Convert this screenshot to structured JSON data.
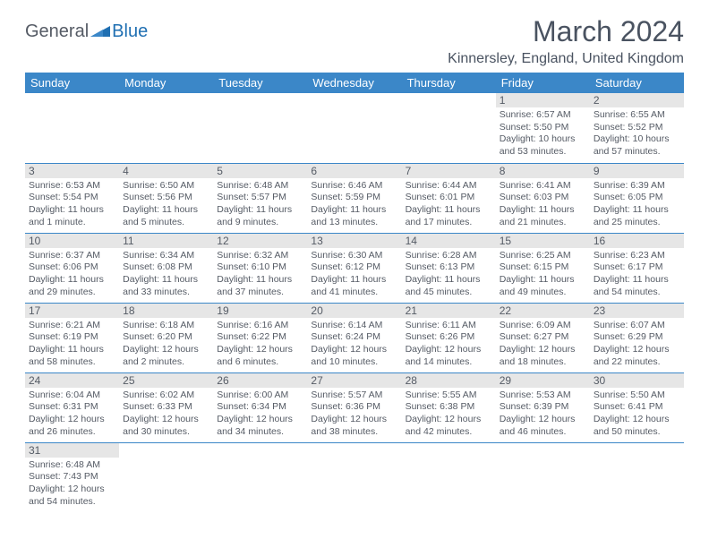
{
  "logo": {
    "part1": "General",
    "part2": "Blue"
  },
  "title": "March 2024",
  "subtitle": "Kinnersley, England, United Kingdom",
  "colors": {
    "header_bg": "#3b87c8",
    "daynum_bg": "#e6e6e6",
    "text": "#555b65",
    "logo_accent": "#1f6fb2"
  },
  "weekdays": [
    "Sunday",
    "Monday",
    "Tuesday",
    "Wednesday",
    "Thursday",
    "Friday",
    "Saturday"
  ],
  "weeks": [
    [
      null,
      null,
      null,
      null,
      null,
      {
        "n": "1",
        "sr": "6:57 AM",
        "ss": "5:50 PM",
        "dl": "10 hours and 53 minutes."
      },
      {
        "n": "2",
        "sr": "6:55 AM",
        "ss": "5:52 PM",
        "dl": "10 hours and 57 minutes."
      }
    ],
    [
      {
        "n": "3",
        "sr": "6:53 AM",
        "ss": "5:54 PM",
        "dl": "11 hours and 1 minute."
      },
      {
        "n": "4",
        "sr": "6:50 AM",
        "ss": "5:56 PM",
        "dl": "11 hours and 5 minutes."
      },
      {
        "n": "5",
        "sr": "6:48 AM",
        "ss": "5:57 PM",
        "dl": "11 hours and 9 minutes."
      },
      {
        "n": "6",
        "sr": "6:46 AM",
        "ss": "5:59 PM",
        "dl": "11 hours and 13 minutes."
      },
      {
        "n": "7",
        "sr": "6:44 AM",
        "ss": "6:01 PM",
        "dl": "11 hours and 17 minutes."
      },
      {
        "n": "8",
        "sr": "6:41 AM",
        "ss": "6:03 PM",
        "dl": "11 hours and 21 minutes."
      },
      {
        "n": "9",
        "sr": "6:39 AM",
        "ss": "6:05 PM",
        "dl": "11 hours and 25 minutes."
      }
    ],
    [
      {
        "n": "10",
        "sr": "6:37 AM",
        "ss": "6:06 PM",
        "dl": "11 hours and 29 minutes."
      },
      {
        "n": "11",
        "sr": "6:34 AM",
        "ss": "6:08 PM",
        "dl": "11 hours and 33 minutes."
      },
      {
        "n": "12",
        "sr": "6:32 AM",
        "ss": "6:10 PM",
        "dl": "11 hours and 37 minutes."
      },
      {
        "n": "13",
        "sr": "6:30 AM",
        "ss": "6:12 PM",
        "dl": "11 hours and 41 minutes."
      },
      {
        "n": "14",
        "sr": "6:28 AM",
        "ss": "6:13 PM",
        "dl": "11 hours and 45 minutes."
      },
      {
        "n": "15",
        "sr": "6:25 AM",
        "ss": "6:15 PM",
        "dl": "11 hours and 49 minutes."
      },
      {
        "n": "16",
        "sr": "6:23 AM",
        "ss": "6:17 PM",
        "dl": "11 hours and 54 minutes."
      }
    ],
    [
      {
        "n": "17",
        "sr": "6:21 AM",
        "ss": "6:19 PM",
        "dl": "11 hours and 58 minutes."
      },
      {
        "n": "18",
        "sr": "6:18 AM",
        "ss": "6:20 PM",
        "dl": "12 hours and 2 minutes."
      },
      {
        "n": "19",
        "sr": "6:16 AM",
        "ss": "6:22 PM",
        "dl": "12 hours and 6 minutes."
      },
      {
        "n": "20",
        "sr": "6:14 AM",
        "ss": "6:24 PM",
        "dl": "12 hours and 10 minutes."
      },
      {
        "n": "21",
        "sr": "6:11 AM",
        "ss": "6:26 PM",
        "dl": "12 hours and 14 minutes."
      },
      {
        "n": "22",
        "sr": "6:09 AM",
        "ss": "6:27 PM",
        "dl": "12 hours and 18 minutes."
      },
      {
        "n": "23",
        "sr": "6:07 AM",
        "ss": "6:29 PM",
        "dl": "12 hours and 22 minutes."
      }
    ],
    [
      {
        "n": "24",
        "sr": "6:04 AM",
        "ss": "6:31 PM",
        "dl": "12 hours and 26 minutes."
      },
      {
        "n": "25",
        "sr": "6:02 AM",
        "ss": "6:33 PM",
        "dl": "12 hours and 30 minutes."
      },
      {
        "n": "26",
        "sr": "6:00 AM",
        "ss": "6:34 PM",
        "dl": "12 hours and 34 minutes."
      },
      {
        "n": "27",
        "sr": "5:57 AM",
        "ss": "6:36 PM",
        "dl": "12 hours and 38 minutes."
      },
      {
        "n": "28",
        "sr": "5:55 AM",
        "ss": "6:38 PM",
        "dl": "12 hours and 42 minutes."
      },
      {
        "n": "29",
        "sr": "5:53 AM",
        "ss": "6:39 PM",
        "dl": "12 hours and 46 minutes."
      },
      {
        "n": "30",
        "sr": "5:50 AM",
        "ss": "6:41 PM",
        "dl": "12 hours and 50 minutes."
      }
    ],
    [
      {
        "n": "31",
        "sr": "6:48 AM",
        "ss": "7:43 PM",
        "dl": "12 hours and 54 minutes."
      },
      null,
      null,
      null,
      null,
      null,
      null
    ]
  ],
  "labels": {
    "sunrise": "Sunrise:",
    "sunset": "Sunset:",
    "daylight": "Daylight:"
  }
}
